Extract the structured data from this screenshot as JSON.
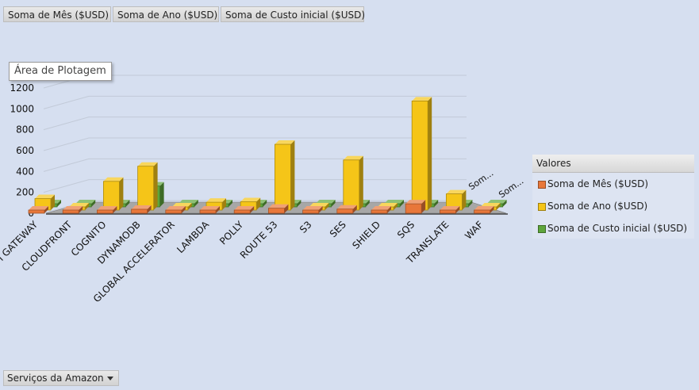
{
  "field_buttons": [
    "Soma de Mês ($USD)",
    "Soma de Ano ($USD)",
    "Soma de Custo inicial ($USD)"
  ],
  "tooltip": "Área de Plotagem",
  "legend": {
    "title": "Valores",
    "items": [
      {
        "label": "Soma de Mês ($USD)",
        "color": "#e8773a"
      },
      {
        "label": "Soma de Ano ($USD)",
        "color": "#f5c518"
      },
      {
        "label": "Soma de Custo inicial ($USD)",
        "color": "#5ea53b"
      }
    ]
  },
  "depth_labels": [
    "Som...",
    "Som..."
  ],
  "bottom_field": "Serviços da Amazon",
  "chart_data": {
    "type": "bar",
    "categories": [
      "API GATEWAY",
      "CLOUDFRONT",
      "COGNITO",
      "DYNAMODB",
      "GLOBAL ACCELERATOR",
      "LAMBDA",
      "POLLY",
      "ROUTE 53",
      "S3",
      "SES",
      "SHIELD",
      "SQS",
      "TRANSLATE",
      "WAF"
    ],
    "series": [
      {
        "name": "Soma de Mês ($USD)",
        "color": "#e8773a",
        "values": [
          10,
          10,
          28,
          38,
          10,
          14,
          14,
          48,
          10,
          40,
          12,
          90,
          14,
          10
        ]
      },
      {
        "name": "Soma de Ano ($USD)",
        "color": "#f5c518",
        "values": [
          110,
          12,
          275,
          420,
          12,
          75,
          80,
          630,
          12,
          480,
          14,
          1045,
          155,
          12
        ]
      },
      {
        "name": "Soma de Custo inicial ($USD)",
        "color": "#5ea53b",
        "values": [
          0,
          0,
          0,
          200,
          0,
          0,
          0,
          0,
          0,
          0,
          0,
          0,
          0,
          0
        ]
      }
    ],
    "yticks": [
      0,
      200,
      400,
      600,
      800,
      1000,
      1200
    ],
    "ylim": [
      0,
      1200
    ],
    "grid": true,
    "legend_position": "right"
  }
}
